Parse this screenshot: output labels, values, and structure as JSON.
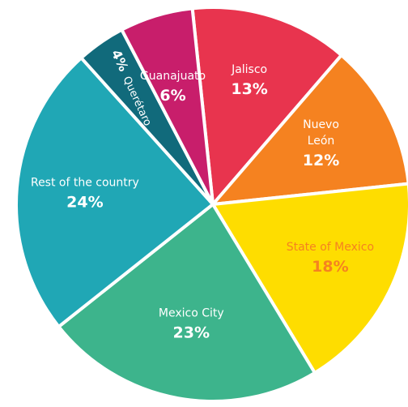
{
  "chart_data": {
    "type": "pie",
    "slices": [
      {
        "name": "Jalisco",
        "name_lines": [
          "Jalisco"
        ],
        "value_label": "13%",
        "value": 13,
        "color": "#E8344E",
        "text_color": "#ffffff"
      },
      {
        "name": "Nuevo León",
        "name_lines": [
          "Nuevo",
          "León"
        ],
        "value_label": "12%",
        "value": 12,
        "color": "#F58220",
        "text_color": "#ffffff"
      },
      {
        "name": "State of Mexico",
        "name_lines": [
          "State of Mexico"
        ],
        "value_label": "18%",
        "value": 18,
        "color": "#FEDD00",
        "text_color": "#F58220"
      },
      {
        "name": "Mexico City",
        "name_lines": [
          "Mexico City"
        ],
        "value_label": "23%",
        "value": 23,
        "color": "#3DB48C",
        "text_color": "#ffffff"
      },
      {
        "name": "Rest of the country",
        "name_lines": [
          "Rest of the country"
        ],
        "value_label": "24%",
        "value": 24,
        "color": "#20A7B5",
        "text_color": "#ffffff"
      },
      {
        "name": "Querétaro",
        "name_lines": [
          "Querétaro"
        ],
        "value_label": "4%",
        "value": 4,
        "color": "#116A7B",
        "text_color": "#ffffff"
      },
      {
        "name": "Guanajuato",
        "name_lines": [
          "Guanajuato"
        ],
        "value_label": "6%",
        "value": 6,
        "color": "#C81E6B",
        "text_color": "#ffffff"
      }
    ]
  }
}
